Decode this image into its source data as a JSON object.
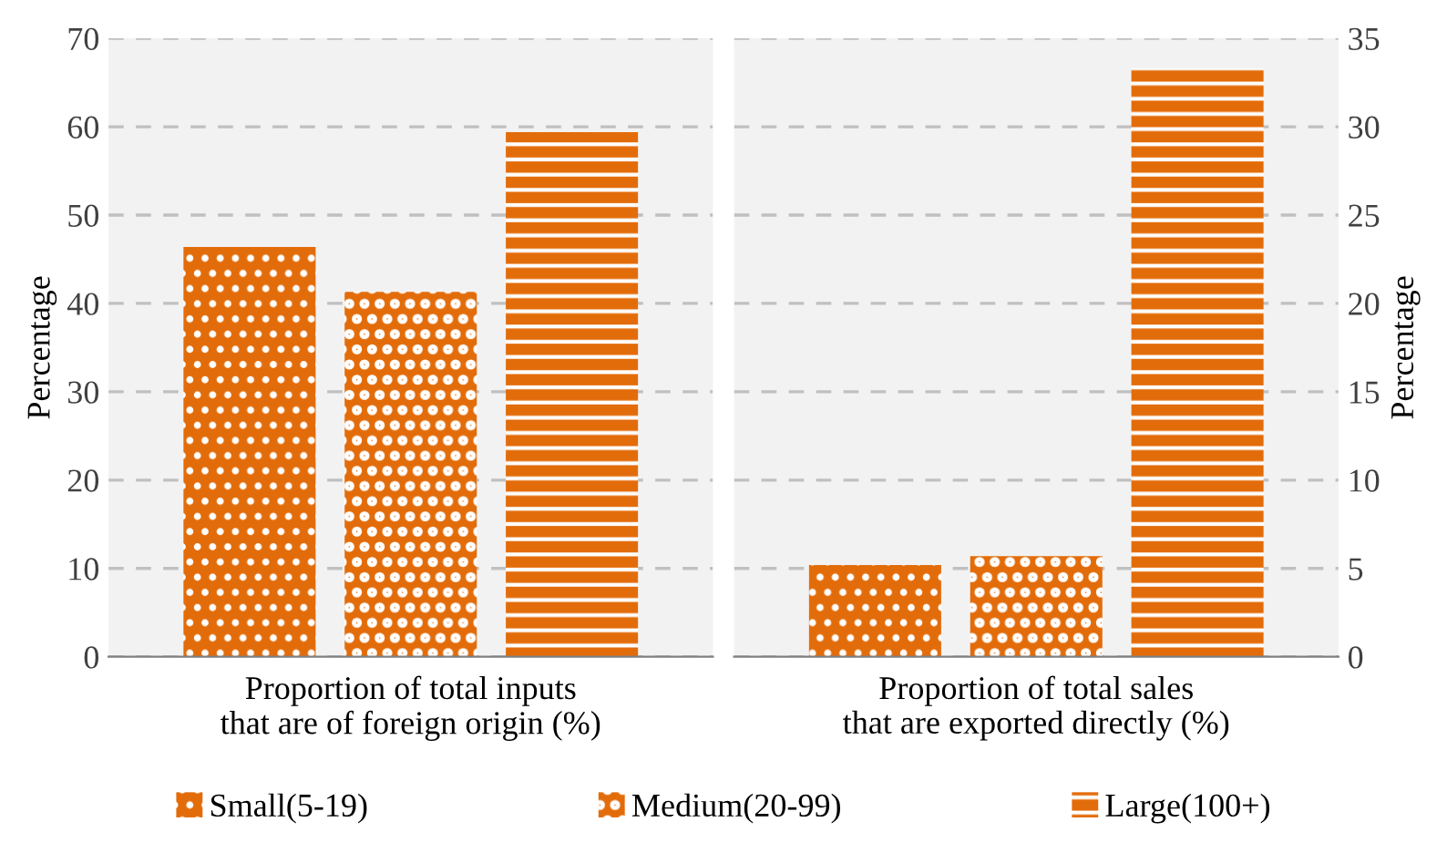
{
  "chart_data": [
    {
      "type": "bar",
      "categories": [
        null
      ],
      "xlabel": "Proportion of total inputs that are of foreign origin (%)",
      "ylabel": "Percentage",
      "ylim": [
        0,
        70
      ],
      "yticks": [
        0,
        10,
        20,
        30,
        40,
        50,
        60,
        70
      ],
      "grid": "y",
      "legend": "bottom",
      "series": [
        {
          "name": "Small(5-19)",
          "color": "#e36c0a",
          "values": [
            46.4
          ]
        },
        {
          "name": "Medium(20-99)",
          "color": "#e36c0a",
          "values": [
            41.3
          ]
        },
        {
          "name": "Large(100+)",
          "color": "#e36c0a",
          "values": [
            59.4
          ]
        }
      ]
    },
    {
      "type": "bar",
      "categories": [
        null
      ],
      "xlabel": "Proportion of total sales that are exported directly (%)",
      "y2label": "Percentage",
      "y2lim": [
        0,
        35
      ],
      "y2ticks": [
        0,
        5,
        10,
        15,
        20,
        25,
        30,
        35
      ],
      "grid": "y",
      "series": [
        {
          "name": "Small(5-19)",
          "color": "#e36c0a",
          "values": [
            5.2
          ],
          "axis": "y2"
        },
        {
          "name": "Medium(20-99)",
          "color": "#e36c0a",
          "values": [
            5.7
          ],
          "axis": "y2"
        },
        {
          "name": "Large(100+)",
          "color": "#e36c0a",
          "values": [
            33.3
          ],
          "axis": "y2"
        }
      ]
    }
  ]
}
